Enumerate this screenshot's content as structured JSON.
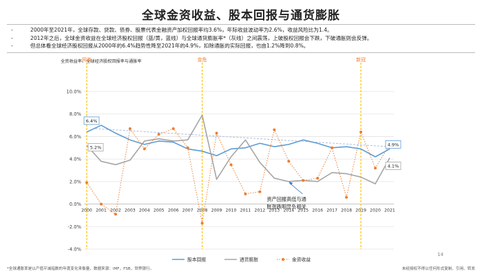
{
  "page": {
    "title": "全球金资收益、股本回报与通货膨胀",
    "bullets": [
      "2000年至2021年，全球存款、贷款、债券、股票代表金融资产加权回报率均3.6%，年际收益波动率为2.6%，收益风险比为1.4。",
      "2012年之后，全球金资收益在全球经济股权回报（蓝/黄，蓝线）与全球通货膨胀率*（灰线）之间震荡，上破股权回报会下跌，下破通胀则会反弹。",
      "但总体看全球经济股权回报从2000年的6.4%趋势性降至2021年的4.9%，扣除通胀的实际回报，也由1.2%降到0.8%。"
    ],
    "y_axis_title": "全资收益率、全球经济股权回报率与通胀率",
    "footnote_left": "*全球通胀率是以产值平减指数的年度变化来衡量，数据来源：IMF，FSB，世界银行。",
    "footnote_right": "未经授权不得以任何形式复制、引用、转发",
    "page_number": "14"
  },
  "chart_data": {
    "type": "line",
    "x": [
      "2000",
      "2001",
      "2002",
      "2003",
      "2004",
      "2005",
      "2006",
      "2007",
      "2008",
      "2009",
      "2010",
      "2011",
      "2012",
      "2013",
      "2014",
      "2015",
      "2016",
      "2017",
      "2018",
      "2019",
      "2020",
      "2021"
    ],
    "ylim": [
      -4.0,
      10.0
    ],
    "yticks": [
      "-4.0%",
      "-2.0%",
      "0.0%",
      "2.0%",
      "4.0%",
      "6.0%",
      "8.0%",
      "10.0%"
    ],
    "ytick_values": [
      -4,
      -2,
      0,
      2,
      4,
      6,
      8,
      10
    ],
    "series": [
      {
        "name": "股本回报",
        "color": "#5b9bd5",
        "style": "solid",
        "values": [
          6.4,
          7.0,
          6.3,
          5.7,
          5.3,
          5.6,
          5.5,
          4.9,
          4.7,
          4.3,
          4.9,
          5.0,
          5.4,
          5.1,
          5.3,
          5.7,
          5.4,
          5.0,
          5.1,
          4.9,
          4.2,
          4.9
        ]
      },
      {
        "name": "通货膨胀",
        "color": "#a5a5a5",
        "style": "solid",
        "values": [
          5.2,
          3.8,
          3.5,
          3.9,
          5.6,
          5.8,
          5.6,
          5.7,
          7.9,
          2.2,
          4.2,
          5.7,
          3.7,
          2.3,
          2.0,
          2.1,
          2.0,
          2.8,
          2.7,
          2.4,
          1.8,
          4.1
        ]
      },
      {
        "name": "金资收益",
        "color": "#ed7d31",
        "style": "dotted",
        "values": [
          1.9,
          0.0,
          -0.9,
          6.7,
          4.9,
          6.2,
          6.7,
          5.0,
          -1.7,
          6.3,
          3.5,
          0.9,
          1.1,
          6.6,
          3.8,
          2.1,
          2.3,
          5.0,
          0.6,
          6.4,
          3.2,
          5.3
        ]
      }
    ],
    "trendline": {
      "from": [
        6.7,
        6.4
      ],
      "to": [
        5.1,
        4.9
      ],
      "color": "#a7bde0"
    },
    "events": [
      {
        "label": "网泡",
        "x": "2000"
      },
      {
        "label": "金危",
        "x": "2008"
      },
      {
        "label": "新冠",
        "x": "2019"
      }
    ],
    "data_labels": [
      {
        "text": "6.4%",
        "x": "2000",
        "series": "股本回报"
      },
      {
        "text": "5.2%",
        "x": "2000",
        "series": "通货膨胀"
      },
      {
        "text": "4.9%",
        "x": "2021",
        "series": "股本回报"
      },
      {
        "text": "4.1%",
        "x": "2021",
        "series": "通货膨胀"
      }
    ],
    "annotation": {
      "text": [
        "资产回报高低与通",
        "胀涨跌明显负相关"
      ],
      "x": "2014",
      "y": 2.0
    },
    "legend_position": "bottom",
    "grid": true
  }
}
